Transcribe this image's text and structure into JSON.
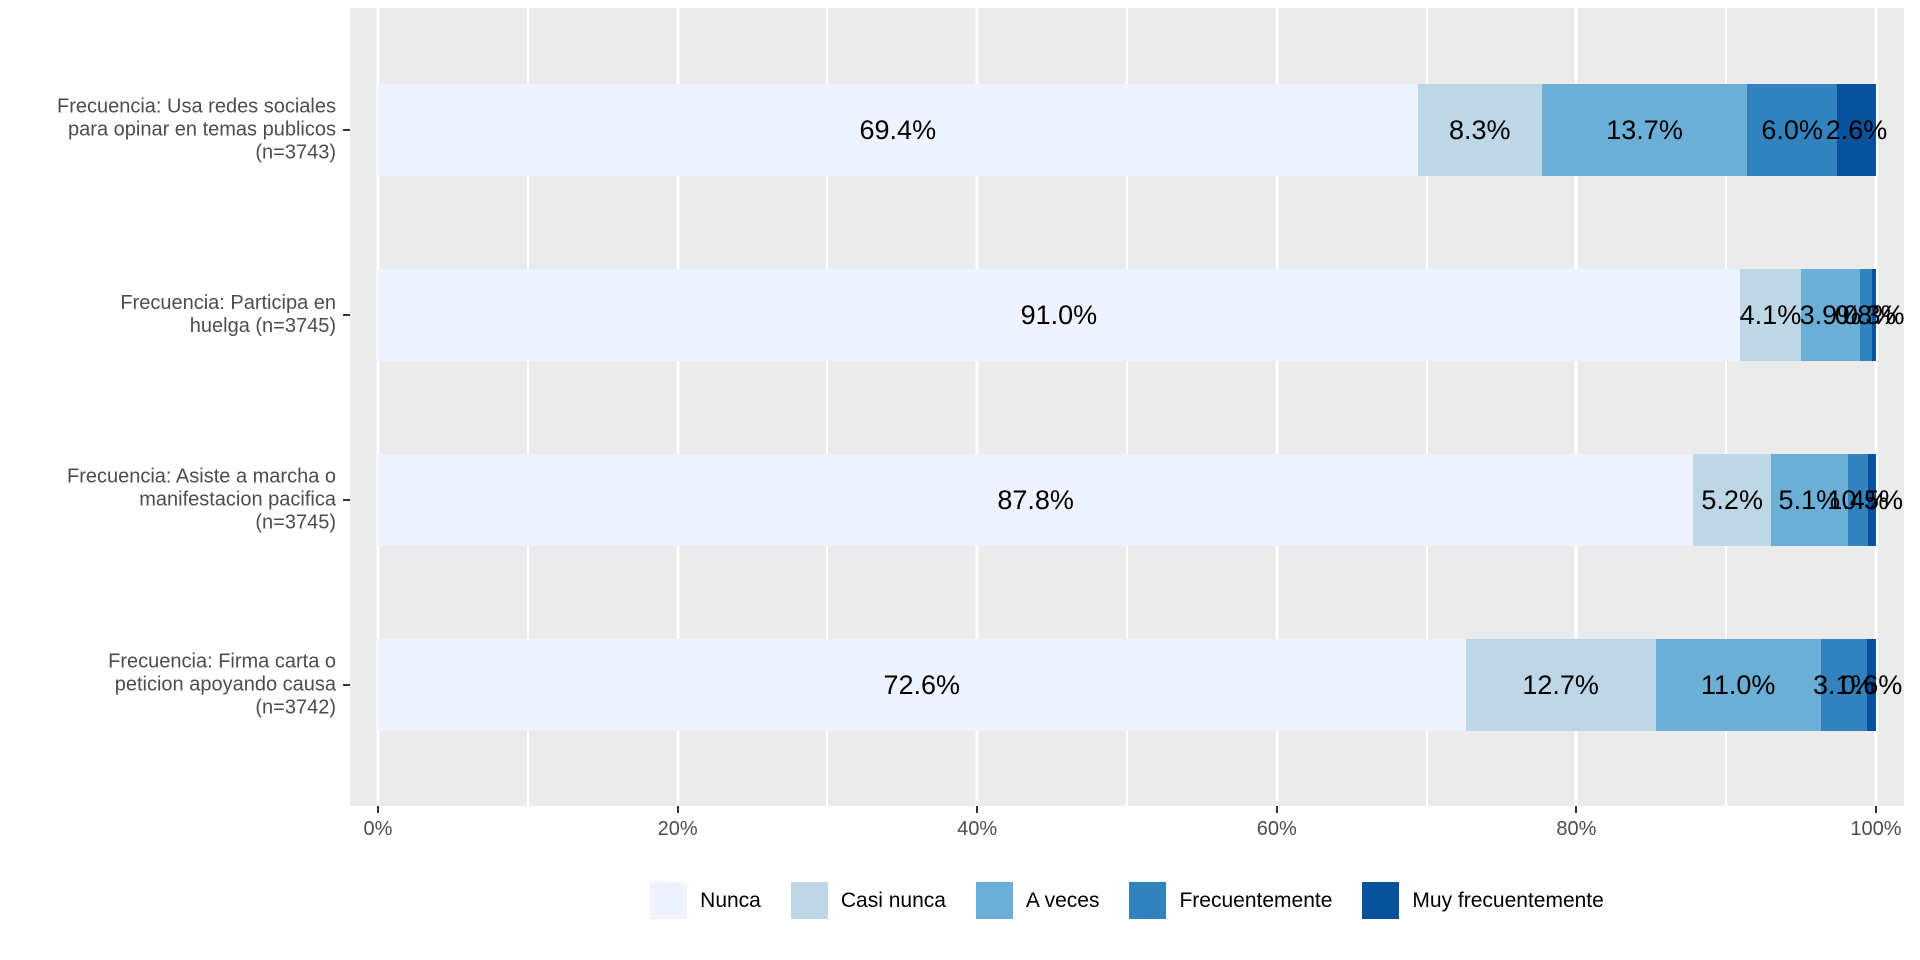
{
  "chart_data": {
    "type": "bar",
    "orientation": "horizontal",
    "stacked": true,
    "value_unit": "%",
    "categories": [
      {
        "label_lines": [
          "Frecuencia: Usa redes sociales",
          "para opinar en temas publicos",
          "(n=3743)"
        ]
      },
      {
        "label_lines": [
          "Frecuencia: Participa en",
          "huelga (n=3745)"
        ]
      },
      {
        "label_lines": [
          "Frecuencia: Asiste a marcha o",
          "manifestacion pacifica",
          "(n=3745)"
        ]
      },
      {
        "label_lines": [
          "Frecuencia: Firma carta o",
          "peticion apoyando causa",
          "(n=3742)"
        ]
      }
    ],
    "series": [
      {
        "name": "Nunca",
        "color": "#EFF3FF",
        "values": [
          69.4,
          91.0,
          87.8,
          72.6
        ]
      },
      {
        "name": "Casi nunca",
        "color": "#BDD7E7",
        "values": [
          8.3,
          4.1,
          5.2,
          12.7
        ]
      },
      {
        "name": "A veces",
        "color": "#6BAED6",
        "values": [
          13.7,
          3.9,
          5.1,
          11.0
        ]
      },
      {
        "name": "Frecuentemente",
        "color": "#3182BD",
        "values": [
          6.0,
          0.8,
          1.4,
          3.1
        ]
      },
      {
        "name": "Muy frecuentemente",
        "color": "#08519C",
        "values": [
          2.6,
          0.3,
          0.5,
          0.6
        ]
      }
    ],
    "bar_labels": [
      [
        "69.4%",
        "8.3%",
        "13.7%",
        "6.0%",
        "2.6%"
      ],
      [
        "91.0%",
        "4.1%",
        "3.9%",
        "0.8%",
        "0.3%"
      ],
      [
        "87.8%",
        "5.2%",
        "5.1%",
        "1.4%",
        "0.5%"
      ],
      [
        "72.6%",
        "12.7%",
        "11.0%",
        "3.1%",
        "0.6%"
      ]
    ],
    "x_axis": {
      "range": [
        0,
        100
      ],
      "tick_values": [
        0,
        20,
        40,
        60,
        80,
        100
      ],
      "tick_labels": [
        "0%",
        "20%",
        "40%",
        "60%",
        "80%",
        "100%"
      ],
      "minor_values": [
        10,
        30,
        50,
        70,
        90
      ]
    },
    "legend": {
      "position": "bottom",
      "items": [
        "Nunca",
        "Casi nunca",
        "A veces",
        "Frecuentemente",
        "Muy frecuentemente"
      ]
    },
    "grid": {
      "show": true,
      "color": "#FFFFFF"
    }
  },
  "colors": {
    "background": "#FFFFFF",
    "panel_bg": "#EBEBEB",
    "grid": "#FFFFFF",
    "axis_text": "#4D4D4D",
    "tick_mark": "#333333",
    "bar_label_text": "#000000"
  }
}
